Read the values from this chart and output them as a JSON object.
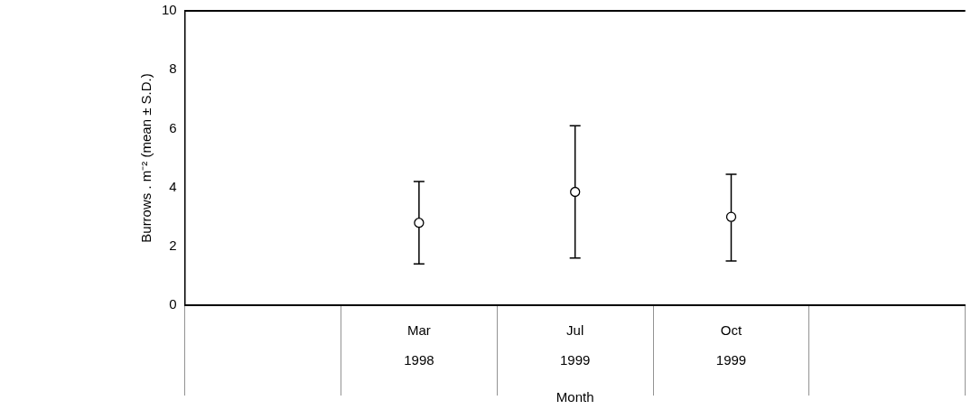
{
  "chart_data": {
    "type": "scatter",
    "xlabel": "Month",
    "ylabel": "Burrows . m⁻² (mean ± S.D.)",
    "categories": [
      null,
      "Mar\n1998",
      "Jul\n1999",
      "Oct\n1999",
      null
    ],
    "series": [
      {
        "color": "#000000",
        "values": [
          null,
          2.8,
          3.85,
          3.0,
          null
        ],
        "errors": [
          null,
          [
            1.4,
            4.2
          ],
          [
            1.6,
            6.1
          ],
          [
            1.5,
            4.45
          ],
          null
        ]
      }
    ],
    "ylim": [
      0,
      10
    ],
    "yticks": [
      0,
      2,
      4,
      6,
      8,
      10
    ],
    "grid": false,
    "legend": false,
    "marker": "circle"
  }
}
